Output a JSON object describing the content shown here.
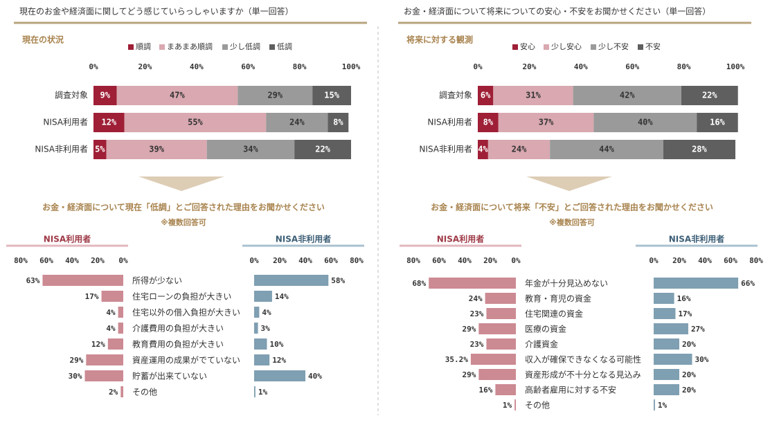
{
  "colors": {
    "dark_red": "#9e1f36",
    "light_pink": "#d9a8b0",
    "gray": "#9a9a9a",
    "dark_gray": "#5f5f5f",
    "left_bar": "#cc8a93",
    "right_bar": "#7f9fb2",
    "accent": "#a8834e",
    "rule": "#b8a37e",
    "nisa_line": "#e3b6bd",
    "non_nisa_line": "#a9c1cf",
    "left_label": "#9e3a47",
    "right_label": "#3d5f77",
    "arrow": "#ddcdb5"
  },
  "chart_data": [
    {
      "type": "bar",
      "stacked": true,
      "orientation": "horizontal",
      "title": "現在のお金や経済面に関してどう感じていらっしゃいますか（単一回答）",
      "subtitle": "現在の状況",
      "categories": [
        "調査対象",
        "NISA利用者",
        "NISA非利用者"
      ],
      "series": [
        {
          "name": "順調",
          "values": [
            9,
            12,
            5
          ],
          "labels": [
            "9%",
            "12%",
            "5%"
          ]
        },
        {
          "name": "まあまあ順調",
          "values": [
            47,
            55,
            39
          ],
          "labels": [
            "47%",
            "55%",
            "39%"
          ]
        },
        {
          "name": "少し低調",
          "values": [
            29,
            24,
            34
          ],
          "labels": [
            "29%",
            "24%",
            "34%"
          ]
        },
        {
          "name": "低調",
          "values": [
            15,
            8,
            22
          ],
          "labels": [
            "15%",
            "8%",
            "22%"
          ]
        }
      ],
      "xlim": [
        0,
        100
      ],
      "xticks": [
        "0%",
        "20%",
        "40%",
        "60%",
        "80%",
        "100%"
      ],
      "legend": "top"
    },
    {
      "type": "bar",
      "stacked": true,
      "orientation": "horizontal",
      "title": "お金・経済面について将来についての安心・不安をお聞かせください（単一回答）",
      "subtitle": "将来に対する観測",
      "categories": [
        "調査対象",
        "NISA利用者",
        "NISA非利用者"
      ],
      "series": [
        {
          "name": "安心",
          "values": [
            6,
            8,
            4
          ],
          "labels": [
            "6%",
            "8%",
            "4%"
          ]
        },
        {
          "name": "少し安心",
          "values": [
            31,
            37,
            24
          ],
          "labels": [
            "31%",
            "37%",
            "24%"
          ]
        },
        {
          "name": "少し不安",
          "values": [
            42,
            40,
            44
          ],
          "labels": [
            "42%",
            "40%",
            "44%"
          ]
        },
        {
          "name": "不安",
          "values": [
            22,
            16,
            28
          ],
          "labels": [
            "22%",
            "16%",
            "28%"
          ]
        }
      ],
      "xlim": [
        0,
        100
      ],
      "xticks": [
        "0%",
        "20%",
        "40%",
        "60%",
        "80%",
        "100%"
      ],
      "legend": "top"
    },
    {
      "type": "bar",
      "orientation": "horizontal",
      "title": "お金・経済面について現在「低調」とご回答された理由をお聞かせください",
      "note": "※複数回答可",
      "categories": [
        "所得が少ない",
        "住宅ローンの負担が大きい",
        "住宅以外の借入負担が大きい",
        "介護費用の負担が大きい",
        "教育費用の負担が大きい",
        "資産運用の成果がでていない",
        "貯蓄が出来ていない",
        "その他"
      ],
      "series": [
        {
          "name": "NISA利用者",
          "values": [
            63,
            17,
            4,
            4,
            12,
            29,
            30,
            2
          ],
          "labels": [
            "63%",
            "17%",
            "4%",
            "4%",
            "12%",
            "29%",
            "30%",
            "2%"
          ]
        },
        {
          "name": "NISA非利用者",
          "values": [
            58,
            14,
            4,
            3,
            10,
            12,
            40,
            1
          ],
          "labels": [
            "58%",
            "14%",
            "4%",
            "3%",
            "10%",
            "12%",
            "40%",
            "1%"
          ]
        }
      ],
      "xlim": [
        0,
        80
      ],
      "left_ticks": [
        "80%",
        "60%",
        "40%",
        "20%",
        "0%"
      ],
      "right_ticks": [
        "0%",
        "20%",
        "40%",
        "60%",
        "80%"
      ]
    },
    {
      "type": "bar",
      "orientation": "horizontal",
      "title": "お金・経済面について将来「不安」とご回答された理由をお聞かせください",
      "note": "※複数回答可",
      "categories": [
        "年金が十分見込めない",
        "教育・育児の資金",
        "住宅関連の資金",
        "医療の資金",
        "介護資金",
        "収入が確保できなくなる可能性",
        "資産形成が不十分となる見込み",
        "高齢者雇用に対する不安",
        "その他"
      ],
      "series": [
        {
          "name": "NISA利用者",
          "values": [
            68,
            24,
            23,
            29,
            23,
            35.2,
            29,
            16,
            1
          ],
          "labels": [
            "68%",
            "24%",
            "23%",
            "29%",
            "23%",
            "35.2%",
            "29%",
            "16%",
            "1%"
          ]
        },
        {
          "name": "NISA非利用者",
          "values": [
            66,
            16,
            17,
            27,
            20,
            30,
            20,
            20,
            1
          ],
          "labels": [
            "66%",
            "16%",
            "17%",
            "27%",
            "20%",
            "30%",
            "20%",
            "20%",
            "1%"
          ]
        }
      ],
      "xlim": [
        0,
        80
      ],
      "left_ticks": [
        "80%",
        "60%",
        "40%",
        "20%",
        "0%"
      ],
      "right_ticks": [
        "0%",
        "20%",
        "40%",
        "60%",
        "80%"
      ]
    }
  ]
}
